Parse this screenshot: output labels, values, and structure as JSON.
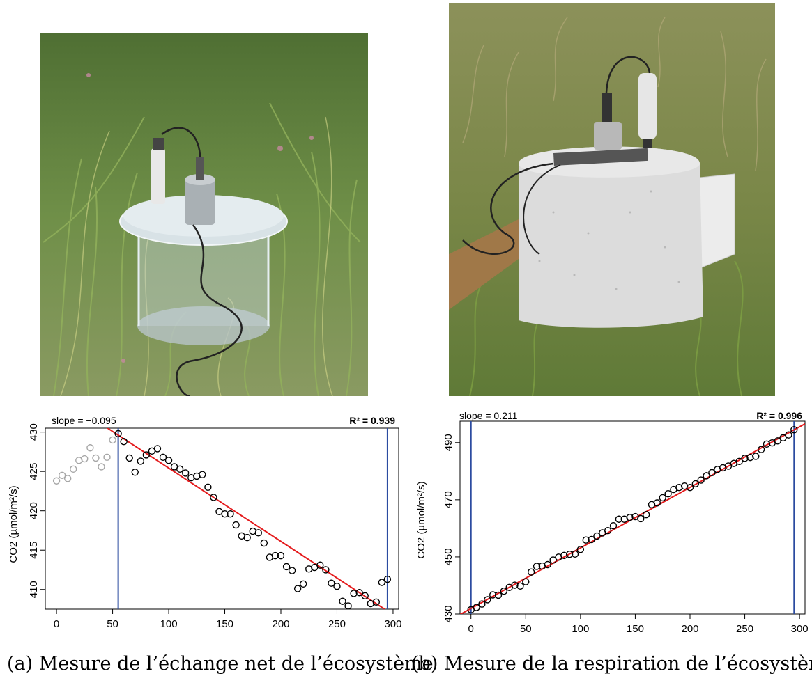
{
  "figure": {
    "panels": [
      {
        "caption": "(a) Mesure de l’échange net de l’écosystème",
        "photo": {
          "description": "transparent chamber with CO2 sensor on grassland",
          "icon": "transparent-chamber-photo"
        },
        "chart": {
          "slope_label": "slope = −0.095",
          "r2_label": "R² = 0.939",
          "ylabel": "CO2 (µmol/m²/s)",
          "xticks": [
            "0",
            "50",
            "100",
            "150",
            "200",
            "250",
            "300"
          ],
          "yticks": [
            "430",
            "425",
            "420",
            "415",
            "410"
          ]
        }
      },
      {
        "caption": "(b) Mesure de la respiration de l’écosystème",
        "photo": {
          "description": "opaque covered chamber with CO2 sensor on grassland",
          "icon": "opaque-chamber-photo"
        },
        "chart": {
          "slope_label": "slope = 0.211",
          "r2_label": "R² = 0.996",
          "ylabel": "CO2 (µmol/m²/s)",
          "xticks": [
            "0",
            "50",
            "100",
            "150",
            "200",
            "250",
            "300"
          ],
          "yticks": [
            "490",
            "470",
            "450",
            "430"
          ]
        }
      }
    ]
  },
  "chart_data": [
    {
      "type": "scatter",
      "subtitle_left": "slope = −0.095",
      "subtitle_right": "R² = 0.939",
      "xlabel": "",
      "ylabel": "CO2 (µmol/m²/s)",
      "xlim": [
        -10,
        305
      ],
      "ylim": [
        407.5,
        430.5
      ],
      "x": [
        0,
        5,
        10,
        15,
        20,
        25,
        30,
        35,
        40,
        45,
        50,
        55,
        60,
        65,
        70,
        75,
        80,
        85,
        90,
        95,
        100,
        105,
        110,
        115,
        120,
        125,
        130,
        135,
        140,
        145,
        150,
        155,
        160,
        165,
        170,
        175,
        180,
        185,
        190,
        195,
        200,
        205,
        210,
        215,
        220,
        225,
        230,
        235,
        240,
        245,
        250,
        255,
        260,
        265,
        270,
        275,
        280,
        285,
        290,
        295
      ],
      "y": [
        423.8,
        424.5,
        424.1,
        425.3,
        426.4,
        426.6,
        428.0,
        426.7,
        425.6,
        426.8,
        429.0,
        429.8,
        428.8,
        426.7,
        424.9,
        426.3,
        427.1,
        427.6,
        427.9,
        426.8,
        426.4,
        425.6,
        425.3,
        424.8,
        424.2,
        424.4,
        424.6,
        423.0,
        421.7,
        419.9,
        419.6,
        419.6,
        418.2,
        416.8,
        416.6,
        417.4,
        417.2,
        415.9,
        414.1,
        414.3,
        414.3,
        412.9,
        412.4,
        410.1,
        410.7,
        412.6,
        412.8,
        413.1,
        412.5,
        410.8,
        410.4,
        408.5,
        407.9,
        409.5,
        409.6,
        409.2,
        408.2,
        408.4,
        410.9,
        411.3
      ],
      "excluded_before_x": 55,
      "fit_line": {
        "x": [
          38,
          300
        ],
        "y": [
          431.2,
          406.8
        ],
        "color": "#e41a1c"
      },
      "vlines": [
        {
          "x": 55,
          "color": "#2b4ba0"
        },
        {
          "x": 295,
          "color": "#2b4ba0"
        }
      ],
      "colors": {
        "points": "#000000",
        "excluded_points": "#a6a6a6"
      }
    },
    {
      "type": "scatter",
      "subtitle_left": "slope = 0.211",
      "subtitle_right": "R² = 0.996",
      "xlabel": "",
      "ylabel": "CO2 (µmol/m²/s)",
      "xlim": [
        -10,
        305
      ],
      "ylim": [
        430,
        497.5
      ],
      "x": [
        0,
        5,
        10,
        15,
        20,
        25,
        30,
        35,
        40,
        45,
        50,
        55,
        60,
        65,
        70,
        75,
        80,
        85,
        90,
        95,
        100,
        105,
        110,
        115,
        120,
        125,
        130,
        135,
        140,
        145,
        150,
        155,
        160,
        165,
        170,
        175,
        180,
        185,
        190,
        195,
        200,
        205,
        210,
        215,
        220,
        225,
        230,
        235,
        240,
        245,
        250,
        255,
        260,
        265,
        270,
        275,
        280,
        285,
        290,
        295
      ],
      "y": [
        431.5,
        432.3,
        433.5,
        435.0,
        436.7,
        436.6,
        438.0,
        439.3,
        440.1,
        439.8,
        441.3,
        444.7,
        446.7,
        446.8,
        447.3,
        448.9,
        449.9,
        450.5,
        450.9,
        451.0,
        452.6,
        455.9,
        456.1,
        457.3,
        458.4,
        459.2,
        460.9,
        463.2,
        463.2,
        463.8,
        464.1,
        463.4,
        464.8,
        468.3,
        468.9,
        470.7,
        472.1,
        473.6,
        474.3,
        474.8,
        474.3,
        475.6,
        476.9,
        478.4,
        479.5,
        480.6,
        481.2,
        481.8,
        482.7,
        483.4,
        484.5,
        484.8,
        485.2,
        487.6,
        489.5,
        489.9,
        490.6,
        491.7,
        492.7,
        494.5
      ],
      "fit_line": {
        "x": [
          -12,
          305
        ],
        "y": [
          429.4,
          496.6
        ],
        "color": "#e41a1c"
      },
      "vlines": [
        {
          "x": 0,
          "color": "#2b4ba0"
        },
        {
          "x": 295,
          "color": "#2b4ba0"
        }
      ],
      "colors": {
        "points": "#000000"
      }
    }
  ]
}
